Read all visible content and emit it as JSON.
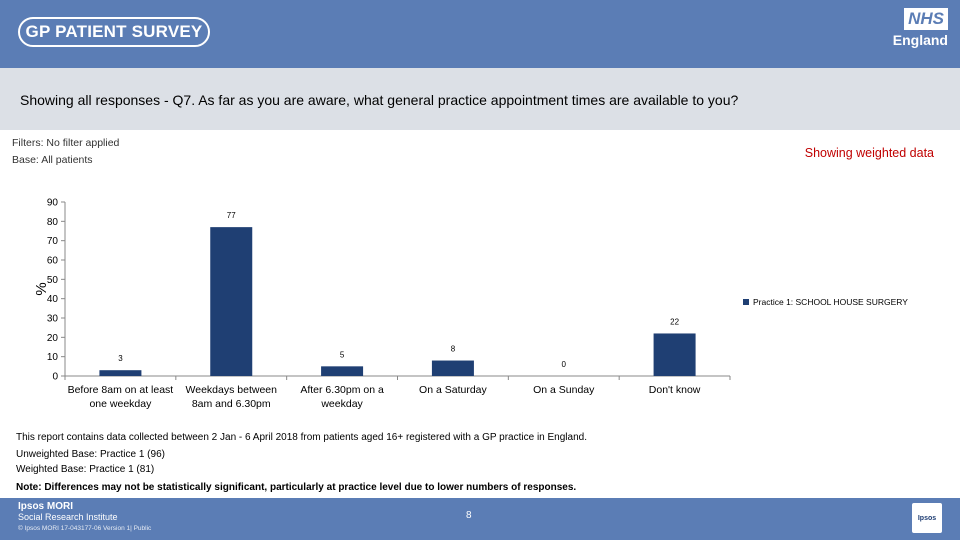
{
  "header": {
    "brand": "GP PATIENT SURVEY",
    "nhs_mark": "NHS",
    "nhs_region": "England"
  },
  "question": "Showing all responses - Q7.  As far as you are aware, what general practice appointment times are available to you?",
  "meta": {
    "filters": "Filters: No filter applied",
    "base": "Base: All patients",
    "weighted": "Showing weighted data"
  },
  "chart_data": {
    "type": "bar",
    "ylabel": "%",
    "ylim": [
      0,
      90
    ],
    "yticks": [
      0,
      10,
      20,
      30,
      40,
      50,
      60,
      70,
      80,
      90
    ],
    "grid": false,
    "legend_position": "right",
    "bar_color": "#1f3f73",
    "categories": [
      [
        "Before 8am on at least",
        "one weekday"
      ],
      [
        "Weekdays between",
        "8am and 6.30pm"
      ],
      [
        "After 6.30pm on a",
        "weekday"
      ],
      [
        "On a Saturday"
      ],
      [
        "On a Sunday"
      ],
      [
        "Don't know"
      ]
    ],
    "series": [
      {
        "name": "Practice 1: SCHOOL HOUSE SURGERY",
        "values": [
          3,
          77,
          5,
          8,
          0,
          22
        ]
      }
    ]
  },
  "notes": {
    "period": "This report contains data collected between 2 Jan - 6 April 2018 from patients aged 16+ registered with a GP practice in England.",
    "unweighted": "Unweighted Base: Practice 1 (96)",
    "weighted": "Weighted Base: Practice 1 (81)",
    "caveat": "Note: Differences may not be statistically significant, particularly at practice level due to lower numbers of responses."
  },
  "footer": {
    "org_line1": "Ipsos MORI",
    "org_line2": "Social Research Institute",
    "copyright": "© Ipsos MORI      17-043177-06 Version 1| Public",
    "page": "8",
    "logo": "Ipsos"
  }
}
